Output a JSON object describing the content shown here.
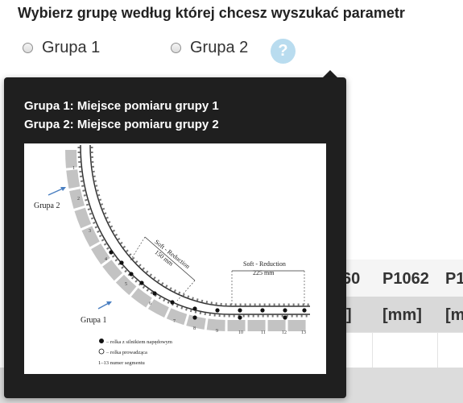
{
  "title": "Wybierz grupę według której chcesz wyszukać parametr",
  "radios": [
    {
      "label": "Grupa 1",
      "checked": false
    },
    {
      "label": "Grupa 2",
      "checked": false
    }
  ],
  "help_icon": "question-mark-icon",
  "help_symbol": "?",
  "popover": {
    "line1": "Grupa 1: Miejsce pomiaru grupy 1",
    "line2": "Grupa 2: Miejsce pomiaru grupy 2",
    "diagram": {
      "label_grupa2": "Grupa 2",
      "label_grupa1": "Grupa 1",
      "soft1_title": "Soft - Reduction",
      "soft1_value": "150 mm",
      "soft2_title": "Soft - Reduction",
      "soft2_value": "225 mm",
      "legend_driven": "– rolka z silnikiem napędowym",
      "legend_guide": "– rolka prowadząca",
      "legend_segments": "1–13 numer segmentu",
      "segment_numbers": [
        "1",
        "2",
        "3",
        "4",
        "5",
        "6",
        "7",
        "8",
        "9",
        "10",
        "11",
        "12",
        "13"
      ]
    }
  },
  "table": {
    "headers": [
      "60",
      "P1062",
      "P1"
    ],
    "units": [
      "]",
      "[mm]",
      "[m"
    ]
  }
}
